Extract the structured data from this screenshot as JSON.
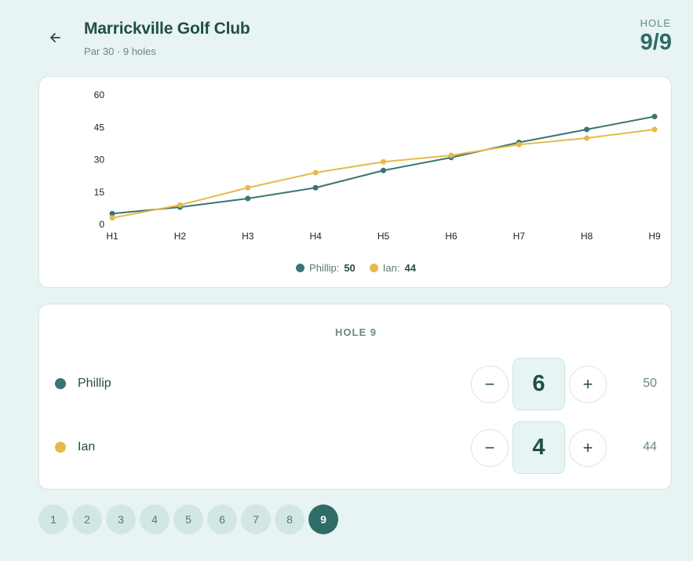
{
  "header": {
    "title": "Marrickville Golf Club",
    "subtitle": "Par 30 · 9 holes",
    "hole_label": "HOLE",
    "hole_count": "9/9"
  },
  "colors": {
    "phillip": "#3a7571",
    "ian": "#e7b94c",
    "accent": "#2f6c67",
    "background": "#e8f3f3"
  },
  "icons": {
    "back": "arrow-left-icon",
    "minus": "minus-icon",
    "plus": "plus-icon"
  },
  "chart_data": {
    "type": "line",
    "categories": [
      "H1",
      "H2",
      "H3",
      "H4",
      "H5",
      "H6",
      "H7",
      "H8",
      "H9"
    ],
    "series": [
      {
        "name": "Phillip",
        "values": [
          5,
          8,
          12,
          17,
          25,
          31,
          38,
          44,
          50
        ],
        "color": "#3a7571"
      },
      {
        "name": "Ian",
        "values": [
          3,
          9,
          17,
          24,
          29,
          32,
          37,
          40,
          44
        ],
        "color": "#e7b94c"
      }
    ],
    "yticks": [
      0,
      15,
      30,
      45,
      60
    ],
    "ylim": [
      0,
      60
    ],
    "grid": false,
    "legend_position": "bottom-center",
    "legend": [
      {
        "name": "Phillip:",
        "value": "50"
      },
      {
        "name": "Ian:",
        "value": "44"
      }
    ]
  },
  "scorecard": {
    "section_label": "HOLE 9",
    "players": [
      {
        "name": "Phillip",
        "score": "6",
        "total": "50"
      },
      {
        "name": "Ian",
        "score": "4",
        "total": "44"
      }
    ],
    "minus_label": "−",
    "plus_label": "+"
  },
  "hole_nav": {
    "holes": [
      "1",
      "2",
      "3",
      "4",
      "5",
      "6",
      "7",
      "8",
      "9"
    ],
    "active": "9"
  }
}
